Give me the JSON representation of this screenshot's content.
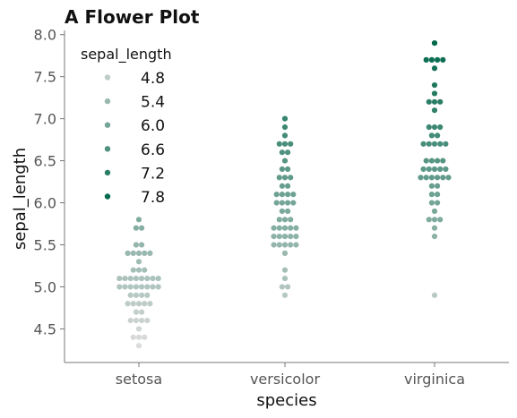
{
  "chart_data": {
    "type": "scatter",
    "subtype": "swarm",
    "title": "A Flower Plot",
    "xlabel": "species",
    "ylabel": "sepal_length",
    "categories": [
      "setosa",
      "versicolor",
      "virginica"
    ],
    "ylim": [
      4.1,
      8.05
    ],
    "yticks": [
      "4.5",
      "5.0",
      "5.5",
      "6.0",
      "6.5",
      "7.0",
      "7.5",
      "8.0"
    ],
    "grid": false,
    "hue": "sepal_length",
    "hue_range": [
      4.3,
      7.9
    ],
    "color_low": "#dcdcdc",
    "color_high": "#00674a",
    "legend": {
      "title": "sepal_length",
      "placement": "top-left",
      "entries": [
        "4.8",
        "5.4",
        "6.0",
        "6.6",
        "7.2",
        "7.8"
      ]
    },
    "series": [
      {
        "category": "setosa",
        "values": [
          5.1,
          4.9,
          4.7,
          4.6,
          5.0,
          5.4,
          4.6,
          5.0,
          4.4,
          4.9,
          5.4,
          4.8,
          4.8,
          4.3,
          5.8,
          5.7,
          5.4,
          5.1,
          5.7,
          5.1,
          5.4,
          5.1,
          4.6,
          5.1,
          4.8,
          5.0,
          5.0,
          5.2,
          5.2,
          4.7,
          4.8,
          5.4,
          5.2,
          5.5,
          4.9,
          5.0,
          5.5,
          4.9,
          4.4,
          5.1,
          5.0,
          4.5,
          4.4,
          5.0,
          5.1,
          4.8,
          5.1,
          4.6,
          5.3,
          5.0
        ]
      },
      {
        "category": "versicolor",
        "values": [
          7.0,
          6.4,
          6.9,
          5.5,
          6.5,
          5.7,
          6.3,
          4.9,
          6.6,
          5.2,
          5.0,
          5.9,
          6.0,
          6.1,
          5.6,
          6.7,
          5.6,
          5.8,
          6.2,
          5.6,
          5.9,
          6.1,
          6.3,
          6.1,
          6.4,
          6.6,
          6.8,
          6.7,
          6.0,
          5.7,
          5.5,
          5.5,
          5.8,
          6.0,
          5.4,
          6.0,
          6.7,
          6.3,
          5.6,
          5.5,
          5.5,
          6.1,
          5.8,
          5.0,
          5.6,
          5.7,
          5.7,
          6.2,
          5.1,
          5.7
        ]
      },
      {
        "category": "virginica",
        "values": [
          6.3,
          5.8,
          7.1,
          6.3,
          6.5,
          7.6,
          4.9,
          7.3,
          6.7,
          7.2,
          6.5,
          6.4,
          6.8,
          5.7,
          5.8,
          6.4,
          6.5,
          7.7,
          7.7,
          6.0,
          6.9,
          5.6,
          7.7,
          6.3,
          6.7,
          7.2,
          6.2,
          6.1,
          6.4,
          7.2,
          7.4,
          7.9,
          6.4,
          6.3,
          6.1,
          7.7,
          6.3,
          6.4,
          6.0,
          6.9,
          6.7,
          6.9,
          5.8,
          6.8,
          6.7,
          6.7,
          6.3,
          6.5,
          6.2,
          5.9
        ]
      }
    ]
  }
}
